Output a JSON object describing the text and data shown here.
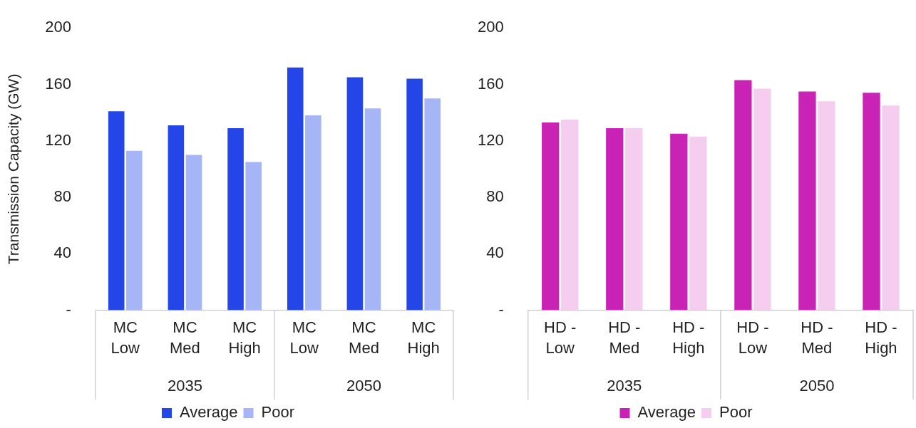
{
  "chart_data": [
    {
      "type": "bar",
      "ylabel": "Transmission Capacity (GW)",
      "categories": [
        "MC Low",
        "MC Med",
        "MC High",
        "MC Low",
        "MC Med",
        "MC High"
      ],
      "series": [
        {
          "name": "Average",
          "color": "#2446e8",
          "values": [
            141,
            131,
            129,
            172,
            165,
            164
          ]
        },
        {
          "name": "Poor",
          "color": "#a6b5f5",
          "values": [
            113,
            110,
            105,
            138,
            143,
            150
          ]
        }
      ],
      "ylim": [
        0,
        200
      ],
      "yticks": [
        {
          "value": 0,
          "label": "-"
        },
        40,
        80,
        120,
        160,
        200
      ],
      "annotations": [
        "2035",
        "2050"
      ],
      "grid": false,
      "legend": "bottom"
    },
    {
      "type": "bar",
      "categories": [
        "HD - Low",
        "HD - Med",
        "HD - High",
        "HD - Low",
        "HD - Med",
        "HD - High"
      ],
      "series": [
        {
          "name": "Average",
          "color": "#c823b4",
          "values": [
            133,
            129,
            125,
            163,
            155,
            154
          ]
        },
        {
          "name": "Poor",
          "color": "#f5cdee",
          "values": [
            135,
            129,
            123,
            157,
            148,
            145
          ]
        }
      ],
      "ylim": [
        0,
        200
      ],
      "yticks": [
        {
          "value": 0,
          "label": "-"
        },
        40,
        80,
        120,
        160,
        200
      ],
      "annotations": [
        "2035",
        "2050"
      ],
      "grid": false,
      "legend": "bottom"
    }
  ]
}
